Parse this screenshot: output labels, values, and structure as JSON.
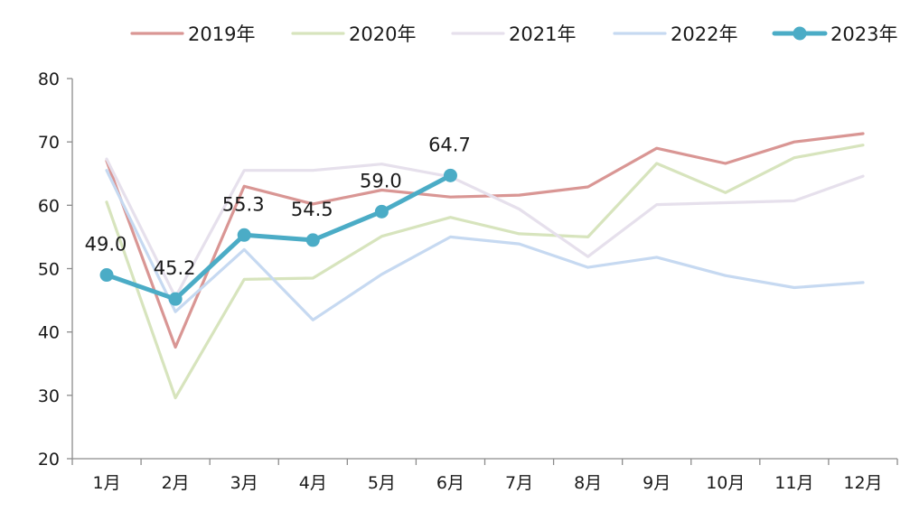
{
  "chart_data": {
    "type": "line",
    "title": "",
    "xlabel": "",
    "ylabel": "",
    "categories": [
      "1月",
      "2月",
      "3月",
      "4月",
      "5月",
      "6月",
      "7月",
      "8月",
      "9月",
      "10月",
      "11月",
      "12月"
    ],
    "ylim": [
      20,
      80
    ],
    "yticks": [
      20,
      30,
      40,
      50,
      60,
      70,
      80
    ],
    "grid": false,
    "legend_position": "top",
    "series": [
      {
        "name": "2019年",
        "color": "#d99694",
        "markers": false,
        "values": [
          67.0,
          37.6,
          63.0,
          60.2,
          62.4,
          61.3,
          61.6,
          62.9,
          69.0,
          66.6,
          70.0,
          71.3
        ]
      },
      {
        "name": "2020年",
        "color": "#d7e4bd",
        "markers": false,
        "values": [
          60.5,
          29.6,
          48.3,
          48.5,
          55.1,
          58.1,
          55.5,
          55.0,
          66.6,
          62.0,
          67.5,
          69.5
        ]
      },
      {
        "name": "2021年",
        "color": "#e6e0ec",
        "markers": false,
        "values": [
          67.3,
          45.5,
          65.5,
          65.5,
          66.5,
          64.5,
          59.4,
          51.9,
          60.1,
          60.4,
          60.7,
          64.6
        ]
      },
      {
        "name": "2022年",
        "color": "#c6d9f1",
        "markers": false,
        "values": [
          65.5,
          43.2,
          53.0,
          41.9,
          49.1,
          55.0,
          53.9,
          50.2,
          51.8,
          48.9,
          47.0,
          47.8
        ]
      },
      {
        "name": "2023年",
        "color": "#4bacc6",
        "markers": true,
        "values": [
          49.0,
          45.2,
          55.3,
          54.5,
          59.0,
          64.7,
          null,
          null,
          null,
          null,
          null,
          null
        ],
        "data_labels": [
          "49.0",
          "45.2",
          "55.3",
          "54.5",
          "59.0",
          "64.7"
        ]
      }
    ]
  }
}
